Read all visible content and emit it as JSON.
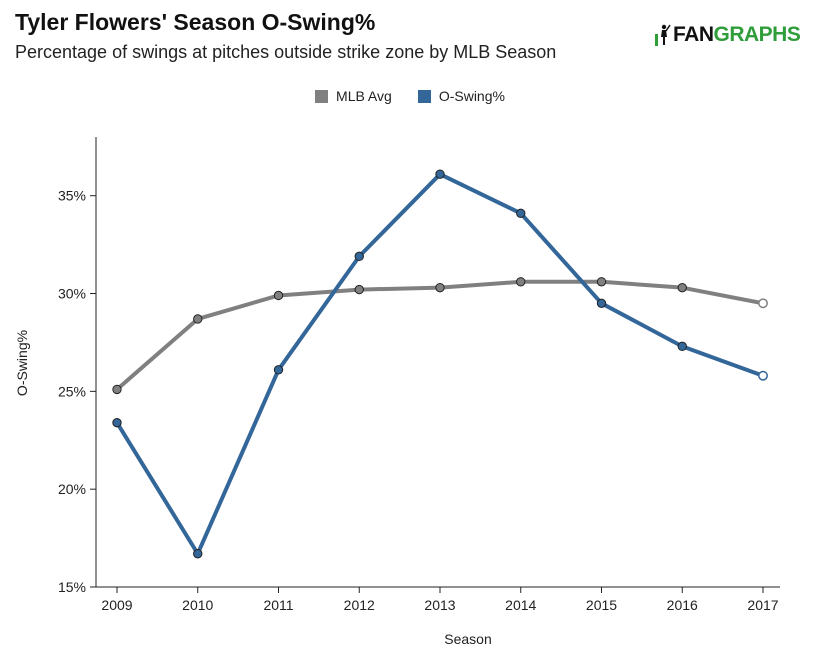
{
  "header": {
    "title": "Tyler Flowers' Season O-Swing%",
    "subtitle": "Percentage of swings at pitches outside strike zone by MLB Season"
  },
  "logo": {
    "fan": "FAN",
    "graphs": "GRAPHS",
    "icon": "batter-icon"
  },
  "colors": {
    "mlb_avg": "#808080",
    "o_swing": "#336699",
    "logo_green": "#2e9d3a"
  },
  "chart_data": {
    "type": "line",
    "title": "Tyler Flowers' Season O-Swing%",
    "subtitle": "Percentage of swings at pitches outside strike zone by MLB Season",
    "xlabel": "Season",
    "ylabel": "O-Swing%",
    "categories": [
      "2009",
      "2010",
      "2011",
      "2012",
      "2013",
      "2014",
      "2015",
      "2016",
      "2017"
    ],
    "ylim": [
      15,
      38
    ],
    "yticks": [
      15,
      20,
      25,
      30,
      35
    ],
    "ytick_labels": [
      "15%",
      "20%",
      "25%",
      "30%",
      "35%"
    ],
    "legend_position": "top-center",
    "grid": false,
    "series": [
      {
        "name": "MLB Avg",
        "color": "#808080",
        "values": [
          25.1,
          28.7,
          29.9,
          30.2,
          30.3,
          30.6,
          30.6,
          30.3,
          29.5
        ]
      },
      {
        "name": "O-Swing%",
        "color": "#336699",
        "values": [
          23.4,
          16.7,
          26.1,
          31.9,
          36.1,
          34.1,
          29.5,
          27.3,
          25.8
        ]
      }
    ]
  }
}
